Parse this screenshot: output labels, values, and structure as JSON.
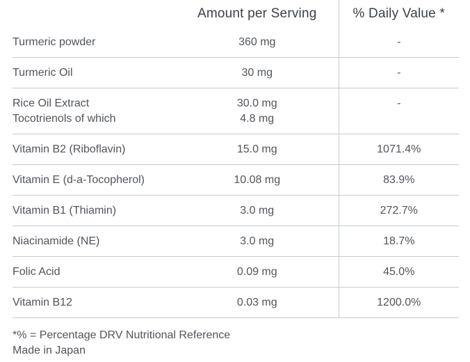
{
  "colors": {
    "border": "#c2cbd3",
    "header_text": "#3b4147",
    "body_text": "#50555b",
    "background": "#ffffff"
  },
  "table": {
    "headers": {
      "amount": "Amount per Serving",
      "daily_value": "% Daily Value *"
    },
    "rows": [
      {
        "label": "Turmeric powder",
        "amount": "360 mg",
        "daily_value": "-"
      },
      {
        "label": "Turmeric Oil",
        "amount": "30 mg",
        "daily_value": "-"
      },
      {
        "label": "Rice Oil Extract\nTocotrienols of which",
        "amount": "30.0 mg\n4.8 mg",
        "daily_value": "-"
      },
      {
        "label": "Vitamin B2 (Riboflavin)",
        "amount": "15.0 mg",
        "daily_value": "1071.4%"
      },
      {
        "label": "Vitamin E (d-a-Tocopherol)",
        "amount": "10.08 mg",
        "daily_value": "83.9%"
      },
      {
        "label": "Vitamin B1 (Thiamin)",
        "amount": "3.0 mg",
        "daily_value": "272.7%"
      },
      {
        "label": "Niacinamide (NE)",
        "amount": "3.0 mg",
        "daily_value": "18.7%"
      },
      {
        "label": "Folic Acid",
        "amount": "0.09 mg",
        "daily_value": "45.0%"
      },
      {
        "label": "Vitamin B12",
        "amount": "0.03 mg",
        "daily_value": "1200.0%"
      }
    ]
  },
  "footnotes": {
    "line1": "*% = Percentage DRV Nutritional Reference",
    "line2": "Made in Japan"
  }
}
